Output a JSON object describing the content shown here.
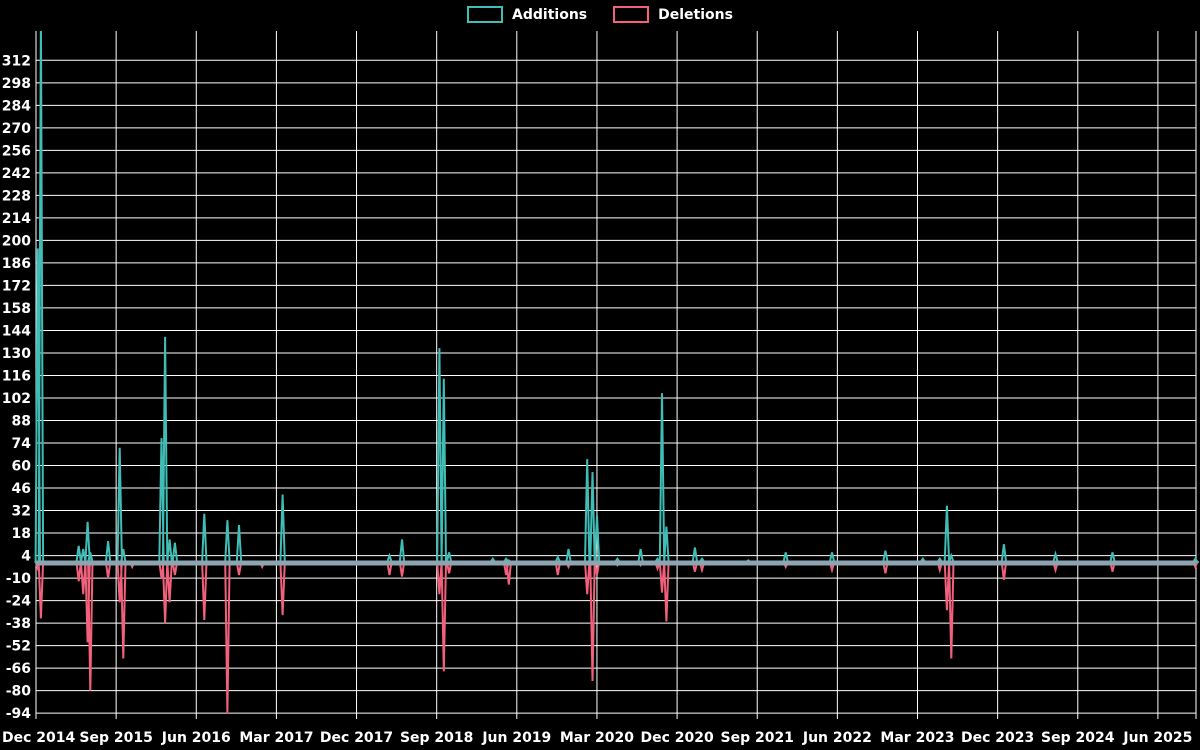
{
  "legend": {
    "items": [
      {
        "label": "Additions",
        "color": "#40bdb6"
      },
      {
        "label": "Deletions",
        "color": "#f2607c"
      }
    ]
  },
  "colors": {
    "background": "#000000",
    "grid": "#ffffff",
    "text": "#ffffff",
    "additions": "#40bdb6",
    "deletions": "#f2607c",
    "zero_line": "#8da5b1"
  },
  "chart_data": {
    "type": "line",
    "title": "",
    "xlabel": "",
    "ylabel": "",
    "y_min": -94,
    "y_max": 312,
    "y_tick_step": 14,
    "y_ticks": [
      312,
      298,
      284,
      270,
      256,
      242,
      228,
      214,
      200,
      186,
      172,
      158,
      144,
      130,
      116,
      102,
      88,
      74,
      60,
      46,
      32,
      18,
      4,
      -10,
      -24,
      -38,
      -52,
      -66,
      -80,
      -94
    ],
    "x_ticks": [
      "Dec 2014",
      "Sep 2015",
      "Jun 2016",
      "Mar 2017",
      "Dec 2017",
      "Sep 2018",
      "Jun 2019",
      "Mar 2020",
      "Dec 2020",
      "Sep 2021",
      "Jun 2022",
      "Mar 2023",
      "Dec 2023",
      "Sep 2024",
      "Jun 2025"
    ],
    "x_tick_interval_months": 9,
    "grid": true,
    "legend_position": "top-center",
    "zero_baseline": true,
    "series_names": [
      "Additions",
      "Deletions"
    ],
    "points_note": "m = months after Dec 2014; additions positive, deletions negative; first addition spike clipped at plot top (>328)",
    "points": [
      {
        "m": 0.2,
        "date": "Dec 2014",
        "additions": 195,
        "deletions": -4
      },
      {
        "m": 0.55,
        "date": "Jan 2015",
        "additions": 340,
        "deletions": -35
      },
      {
        "m": 4.8,
        "date": "May 2015",
        "additions": 10,
        "deletions": -12
      },
      {
        "m": 5.3,
        "date": "May 2015",
        "additions": 8,
        "deletions": -20
      },
      {
        "m": 5.8,
        "date": "Jun 2015",
        "additions": 25,
        "deletions": -50
      },
      {
        "m": 6.1,
        "date": "Jun 2015",
        "additions": 6,
        "deletions": -80
      },
      {
        "m": 8.1,
        "date": "Aug 2015",
        "additions": 13,
        "deletions": -10
      },
      {
        "m": 9.4,
        "date": "Sep 2015",
        "additions": 71,
        "deletions": -25
      },
      {
        "m": 9.8,
        "date": "Oct 2015",
        "additions": 8,
        "deletions": -60
      },
      {
        "m": 10.8,
        "date": "Nov 2015",
        "additions": 0,
        "deletions": -3
      },
      {
        "m": 14.1,
        "date": "Feb 2016",
        "additions": 77,
        "deletions": -10
      },
      {
        "m": 14.5,
        "date": "Feb 2016",
        "additions": 140,
        "deletions": -38
      },
      {
        "m": 15.0,
        "date": "Mar 2016",
        "additions": 14,
        "deletions": -25
      },
      {
        "m": 15.6,
        "date": "Mar 2016",
        "additions": 12,
        "deletions": -8
      },
      {
        "m": 18.9,
        "date": "Jul 2016",
        "additions": 30,
        "deletions": -36
      },
      {
        "m": 21.5,
        "date": "Sep 2016",
        "additions": 26,
        "deletions": -94
      },
      {
        "m": 22.8,
        "date": "Oct 2016",
        "additions": 23,
        "deletions": -8
      },
      {
        "m": 25.4,
        "date": "Jan 2017",
        "additions": 0,
        "deletions": -3
      },
      {
        "m": 27.7,
        "date": "Mar 2017",
        "additions": 42,
        "deletions": -33
      },
      {
        "m": 39.7,
        "date": "Mar 2018",
        "additions": 4,
        "deletions": -8
      },
      {
        "m": 41.1,
        "date": "May 2018",
        "additions": 14,
        "deletions": -9
      },
      {
        "m": 45.3,
        "date": "Sep 2018",
        "additions": 133,
        "deletions": -20
      },
      {
        "m": 45.8,
        "date": "Sep 2018",
        "additions": 114,
        "deletions": -68
      },
      {
        "m": 46.4,
        "date": "Oct 2018",
        "additions": 6,
        "deletions": -7
      },
      {
        "m": 51.3,
        "date": "Mar 2019",
        "additions": 2,
        "deletions": 0
      },
      {
        "m": 52.8,
        "date": "Apr 2019",
        "additions": 2,
        "deletions": -8
      },
      {
        "m": 53.1,
        "date": "May 2019",
        "additions": 1,
        "deletions": -14
      },
      {
        "m": 58.6,
        "date": "Oct 2019",
        "additions": 3,
        "deletions": -8
      },
      {
        "m": 59.8,
        "date": "Nov 2019",
        "additions": 8,
        "deletions": -3
      },
      {
        "m": 61.9,
        "date": "Jan 2020",
        "additions": 64,
        "deletions": -20
      },
      {
        "m": 62.5,
        "date": "Feb 2020",
        "additions": 56,
        "deletions": -74
      },
      {
        "m": 63.0,
        "date": "Mar 2020",
        "additions": 29,
        "deletions": -8
      },
      {
        "m": 65.3,
        "date": "May 2020",
        "additions": 2,
        "deletions": -2
      },
      {
        "m": 67.9,
        "date": "Jul 2020",
        "additions": 8,
        "deletions": -2
      },
      {
        "m": 69.8,
        "date": "Sep 2020",
        "additions": 2,
        "deletions": -4
      },
      {
        "m": 70.3,
        "date": "Oct 2020",
        "additions": 105,
        "deletions": -19
      },
      {
        "m": 70.8,
        "date": "Oct 2020",
        "additions": 22,
        "deletions": -37
      },
      {
        "m": 74.0,
        "date": "Feb 2021",
        "additions": 9,
        "deletions": -6
      },
      {
        "m": 74.8,
        "date": "Feb 2021",
        "additions": 2,
        "deletions": -5
      },
      {
        "m": 80.0,
        "date": "Aug 2021",
        "additions": 1,
        "deletions": -1
      },
      {
        "m": 84.2,
        "date": "Dec 2021",
        "additions": 6,
        "deletions": -3
      },
      {
        "m": 89.4,
        "date": "May 2022",
        "additions": 6,
        "deletions": -5
      },
      {
        "m": 95.4,
        "date": "Nov 2022",
        "additions": 7,
        "deletions": -7
      },
      {
        "m": 99.6,
        "date": "Mar 2023",
        "additions": 2,
        "deletions": -1
      },
      {
        "m": 101.5,
        "date": "May 2023",
        "additions": 2,
        "deletions": -5
      },
      {
        "m": 102.3,
        "date": "Jun 2023",
        "additions": 35,
        "deletions": -30
      },
      {
        "m": 102.8,
        "date": "Jun 2023",
        "additions": 4,
        "deletions": -60
      },
      {
        "m": 108.7,
        "date": "Dec 2023",
        "additions": 11,
        "deletions": -11
      },
      {
        "m": 114.5,
        "date": "Jun 2024",
        "additions": 5,
        "deletions": -5
      },
      {
        "m": 120.9,
        "date": "Dec 2024",
        "additions": 6,
        "deletions": -6
      },
      {
        "m": 130.2,
        "date": "Oct 2025",
        "additions": 2,
        "deletions": -3
      }
    ]
  }
}
